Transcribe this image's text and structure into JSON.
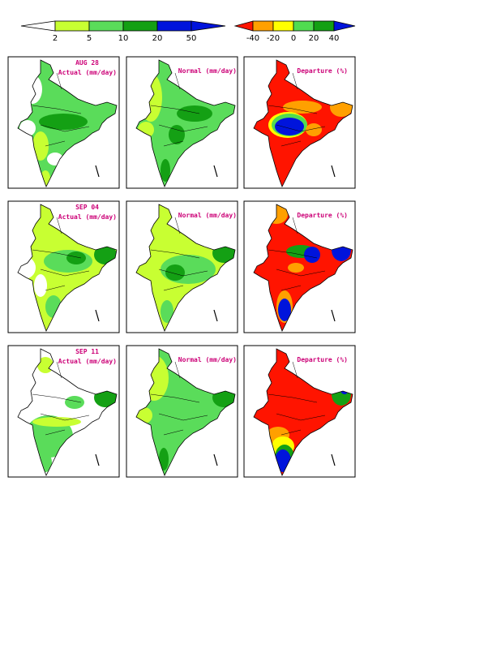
{
  "legends": {
    "rainfall": {
      "ticks": [
        "2",
        "5",
        "10",
        "20",
        "50"
      ],
      "colors": [
        "#ffffff",
        "#c8ff32",
        "#5adc5a",
        "#14a014",
        "#0014dc"
      ]
    },
    "departure": {
      "ticks": [
        "-40",
        "-20",
        "0",
        "20",
        "40"
      ],
      "colors": [
        "#ff1400",
        "#ffa000",
        "#ffff00",
        "#50dc50",
        "#14a014",
        "#0014dc"
      ]
    }
  },
  "rows": [
    {
      "date": "AUG 28",
      "actual_label": "Actual (mm/day)",
      "normal_label": "Normal (mm/day)",
      "departure_label": "Departure (%)",
      "actual_colors": [
        "#c8ff32",
        "#5adc5a",
        "#14a014"
      ],
      "departure_colors": [
        "#ff1400",
        "#ffa000",
        "#0014dc"
      ]
    },
    {
      "date": "SEP 04",
      "actual_label": "Actual (mm/day)",
      "normal_label": "Normal (mm/day)",
      "departure_label": "Departure (%)",
      "actual_colors": [
        "#c8ff32",
        "#5adc5a",
        "#14a014"
      ],
      "departure_colors": [
        "#ff1400",
        "#ffa000",
        "#0014dc"
      ]
    },
    {
      "date": "SEP 11",
      "actual_label": "Actual (mm/day)",
      "normal_label": "Normal (mm/day)",
      "departure_label": "Departure (%)",
      "actual_colors": [
        "#c8ff32",
        "#5adc5a",
        "#14a014"
      ],
      "departure_colors": [
        "#ff1400",
        "#ffa000",
        "#0014dc"
      ]
    }
  ]
}
